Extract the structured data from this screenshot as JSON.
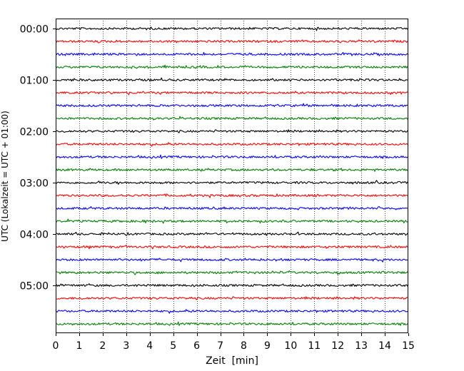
{
  "chart_data": {
    "type": "line",
    "title": "",
    "xlabel": "Zeit  [min]",
    "ylabel": "UTC (Lokalzeit = UTC + 01:00)",
    "xlim": [
      0,
      15
    ],
    "x_ticks": [
      0,
      1,
      2,
      3,
      4,
      5,
      6,
      7,
      8,
      9,
      10,
      11,
      12,
      13,
      14,
      15
    ],
    "x_tick_labels": [
      "0",
      "1",
      "2",
      "3",
      "4",
      "5",
      "6",
      "7",
      "8",
      "9",
      "10",
      "11",
      "12",
      "13",
      "14",
      "15"
    ],
    "y_tick_labels": [
      "00:00",
      "01:00",
      "02:00",
      "03:00",
      "04:00",
      "05:00"
    ],
    "y_tick_traces": [
      0,
      4,
      8,
      12,
      16,
      20
    ],
    "trace_minutes": 15,
    "trace_count": 24,
    "trace_colors": [
      "#000000",
      "#ff0000",
      "#0000ff",
      "#008000"
    ],
    "grid": "vertical dotted",
    "legend": "none",
    "series": [
      {
        "start": "00:00",
        "color": "#000000"
      },
      {
        "start": "00:15",
        "color": "#ff0000"
      },
      {
        "start": "00:30",
        "color": "#0000ff"
      },
      {
        "start": "00:45",
        "color": "#008000"
      },
      {
        "start": "01:00",
        "color": "#000000"
      },
      {
        "start": "01:15",
        "color": "#ff0000"
      },
      {
        "start": "01:30",
        "color": "#0000ff"
      },
      {
        "start": "01:45",
        "color": "#008000"
      },
      {
        "start": "02:00",
        "color": "#000000"
      },
      {
        "start": "02:15",
        "color": "#ff0000"
      },
      {
        "start": "02:30",
        "color": "#0000ff"
      },
      {
        "start": "02:45",
        "color": "#008000"
      },
      {
        "start": "03:00",
        "color": "#000000"
      },
      {
        "start": "03:15",
        "color": "#ff0000"
      },
      {
        "start": "03:30",
        "color": "#0000ff"
      },
      {
        "start": "03:45",
        "color": "#008000"
      },
      {
        "start": "04:00",
        "color": "#000000"
      },
      {
        "start": "04:15",
        "color": "#ff0000"
      },
      {
        "start": "04:30",
        "color": "#0000ff"
      },
      {
        "start": "04:45",
        "color": "#008000"
      },
      {
        "start": "05:00",
        "color": "#000000"
      },
      {
        "start": "05:15",
        "color": "#ff0000"
      },
      {
        "start": "05:30",
        "color": "#0000ff"
      },
      {
        "start": "05:45",
        "color": "#008000"
      }
    ]
  }
}
